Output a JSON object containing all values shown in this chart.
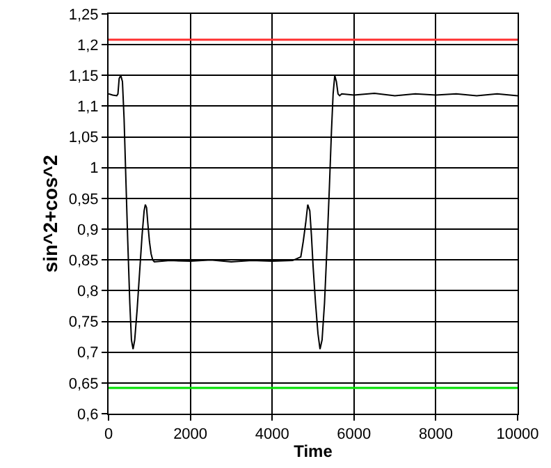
{
  "chart_data": {
    "type": "line",
    "xlabel": "Time",
    "ylabel": "sin^2+cos^2",
    "xlim": [
      0,
      10000
    ],
    "xticks": [
      0,
      2000,
      4000,
      6000,
      8000,
      10000
    ],
    "ylim": [
      0.6,
      1.25
    ],
    "yticks": [
      {
        "value": 0.6,
        "label": "0,6"
      },
      {
        "value": 0.65,
        "label": "0,65"
      },
      {
        "value": 0.7,
        "label": "0,7"
      },
      {
        "value": 0.75,
        "label": "0,75"
      },
      {
        "value": 0.8,
        "label": "0,8"
      },
      {
        "value": 0.85,
        "label": "0,85"
      },
      {
        "value": 0.9,
        "label": "0,9"
      },
      {
        "value": 0.95,
        "label": "0,95"
      },
      {
        "value": 1,
        "label": "1"
      },
      {
        "value": 1.05,
        "label": "1,05"
      },
      {
        "value": 1.1,
        "label": "1,1"
      },
      {
        "value": 1.15,
        "label": "1,15"
      },
      {
        "value": 1.2,
        "label": "1,2"
      },
      {
        "value": 1.25,
        "label": "1,25"
      }
    ],
    "grid": true,
    "marker": "none",
    "line_style": "solid",
    "ref_lines": [
      {
        "axis": "y",
        "value": 1.208,
        "color": "#ff3030"
      },
      {
        "axis": "y",
        "value": 0.642,
        "color": "#00e000"
      }
    ],
    "series": [
      {
        "color": "#000000",
        "x": [
          0,
          100,
          200,
          230,
          260,
          300,
          340,
          380,
          420,
          470,
          520,
          560,
          600,
          640,
          700,
          760,
          820,
          870,
          900,
          930,
          960,
          1000,
          1040,
          1080,
          1120,
          1500,
          2000,
          2500,
          3000,
          3500,
          4000,
          4500,
          4700,
          4760,
          4820,
          4870,
          4920,
          4960,
          5000,
          5060,
          5120,
          5170,
          5220,
          5280,
          5340,
          5400,
          5450,
          5490,
          5530,
          5570,
          5610,
          5650,
          5700,
          6000,
          6500,
          7000,
          7500,
          8000,
          8500,
          9000,
          9500,
          10000
        ],
        "values": [
          1.12,
          1.118,
          1.117,
          1.12,
          1.145,
          1.15,
          1.14,
          1.08,
          0.99,
          0.88,
          0.78,
          0.72,
          0.705,
          0.72,
          0.77,
          0.83,
          0.89,
          0.93,
          0.94,
          0.935,
          0.91,
          0.88,
          0.86,
          0.85,
          0.847,
          0.849,
          0.848,
          0.85,
          0.847,
          0.849,
          0.848,
          0.849,
          0.855,
          0.88,
          0.91,
          0.94,
          0.93,
          0.89,
          0.84,
          0.78,
          0.73,
          0.705,
          0.72,
          0.78,
          0.87,
          0.97,
          1.06,
          1.12,
          1.15,
          1.14,
          1.12,
          1.117,
          1.12,
          1.118,
          1.121,
          1.117,
          1.12,
          1.118,
          1.12,
          1.117,
          1.12,
          1.117
        ]
      }
    ]
  }
}
